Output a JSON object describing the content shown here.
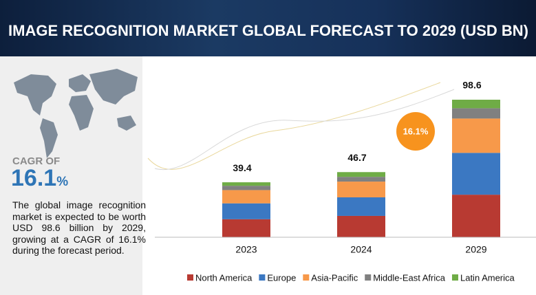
{
  "header": {
    "title": "IMAGE RECOGNITION MARKET GLOBAL FORECAST TO 2029 (USD BN)"
  },
  "sidebar": {
    "cagr_label": "CAGR OF",
    "cagr_value": "16.1",
    "cagr_unit": "%",
    "description": "The global image recognition market is expected to be worth USD 98.6 billion by 2029, growing at a CAGR of 16.1% during the forecast period."
  },
  "chart_data": {
    "type": "bar",
    "stacked": true,
    "categories": [
      "2023",
      "2024",
      "2029"
    ],
    "series": [
      {
        "name": "North America",
        "color": "#b83a32",
        "values": [
          12.9,
          15.3,
          30.5
        ]
      },
      {
        "name": "Europe",
        "color": "#3b78c2",
        "values": [
          11.4,
          13.3,
          30.0
        ]
      },
      {
        "name": "Asia-Pacific",
        "color": "#f7994a",
        "values": [
          9.5,
          11.3,
          24.6
        ]
      },
      {
        "name": "Middle-East Africa",
        "color": "#808080",
        "values": [
          3.1,
          3.4,
          7.4
        ]
      },
      {
        "name": "Latin America",
        "color": "#6fac46",
        "values": [
          2.5,
          3.4,
          6.1
        ]
      }
    ],
    "totals": [
      39.4,
      46.7,
      98.6
    ],
    "cagr_bubble": "16.1%",
    "bubble_color": "#f7931e"
  }
}
